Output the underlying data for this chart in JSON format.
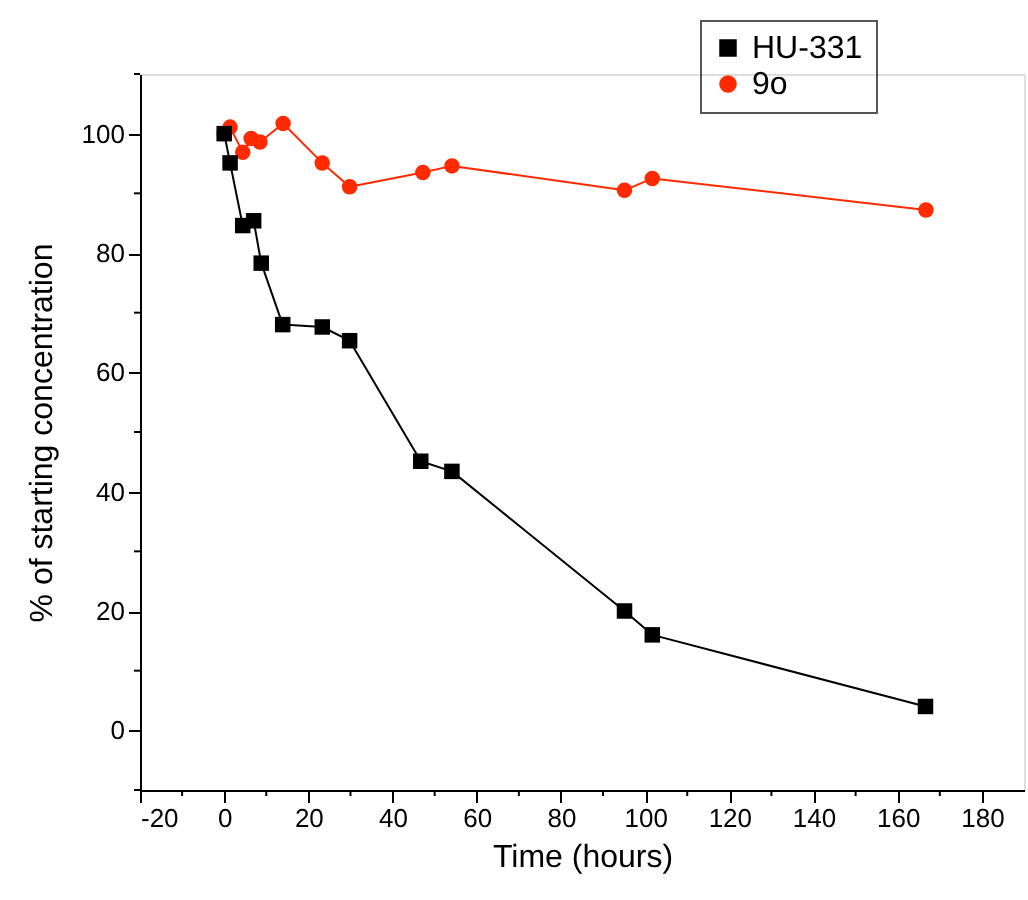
{
  "chart_data": {
    "type": "line",
    "xlabel": "Time (hours)",
    "ylabel": "% of starting concentration",
    "xlim": [
      -20,
      190
    ],
    "ylim": [
      -10,
      110
    ],
    "xticks": [
      -20,
      {
        "value": -10,
        "label": null
      },
      0,
      {
        "value": 10,
        "label": null
      },
      20,
      {
        "value": 30,
        "label": null
      },
      40,
      {
        "value": 50,
        "label": null
      },
      60,
      {
        "value": 70,
        "label": null
      },
      80,
      {
        "value": 90,
        "label": null
      },
      100,
      {
        "value": 110,
        "label": null
      },
      120,
      {
        "value": 130,
        "label": null
      },
      140,
      {
        "value": 150,
        "label": null
      },
      160,
      {
        "value": 170,
        "label": null
      },
      180
    ],
    "yticks": [
      {
        "value": -10,
        "label": null
      },
      0,
      {
        "value": 10,
        "label": null
      },
      20,
      {
        "value": 30,
        "label": null
      },
      40,
      {
        "value": 50,
        "label": null
      },
      60,
      {
        "value": 70,
        "label": null
      },
      80,
      {
        "value": 90,
        "label": null
      },
      100,
      {
        "value": 110,
        "label": null
      }
    ],
    "grid": false,
    "legend": "top right",
    "line_style": "solid",
    "series": [
      {
        "name": "HU-331",
        "color": "#000000",
        "marker": "square",
        "x": [
          0,
          1.4,
          4.4,
          7.0,
          8.8,
          13.9,
          23.3,
          29.8,
          46.7,
          54.1,
          95.1,
          101.7,
          166.6
        ],
        "values": [
          100,
          95.1,
          84.6,
          85.4,
          78.3,
          68.0,
          67.6,
          65.3,
          45.1,
          43.4,
          20.0,
          16.0,
          4.0
        ]
      },
      {
        "name": "9o",
        "color": "#ff2a00",
        "marker": "circle",
        "x": [
          0,
          1.4,
          4.4,
          6.4,
          8.5,
          14.0,
          23.3,
          29.8,
          47.2,
          54.1,
          95.1,
          101.7,
          166.7
        ],
        "values": [
          100,
          101.1,
          96.9,
          99.2,
          98.6,
          101.7,
          95.1,
          91.1,
          93.5,
          94.6,
          90.5,
          92.5,
          87.2
        ]
      }
    ]
  }
}
